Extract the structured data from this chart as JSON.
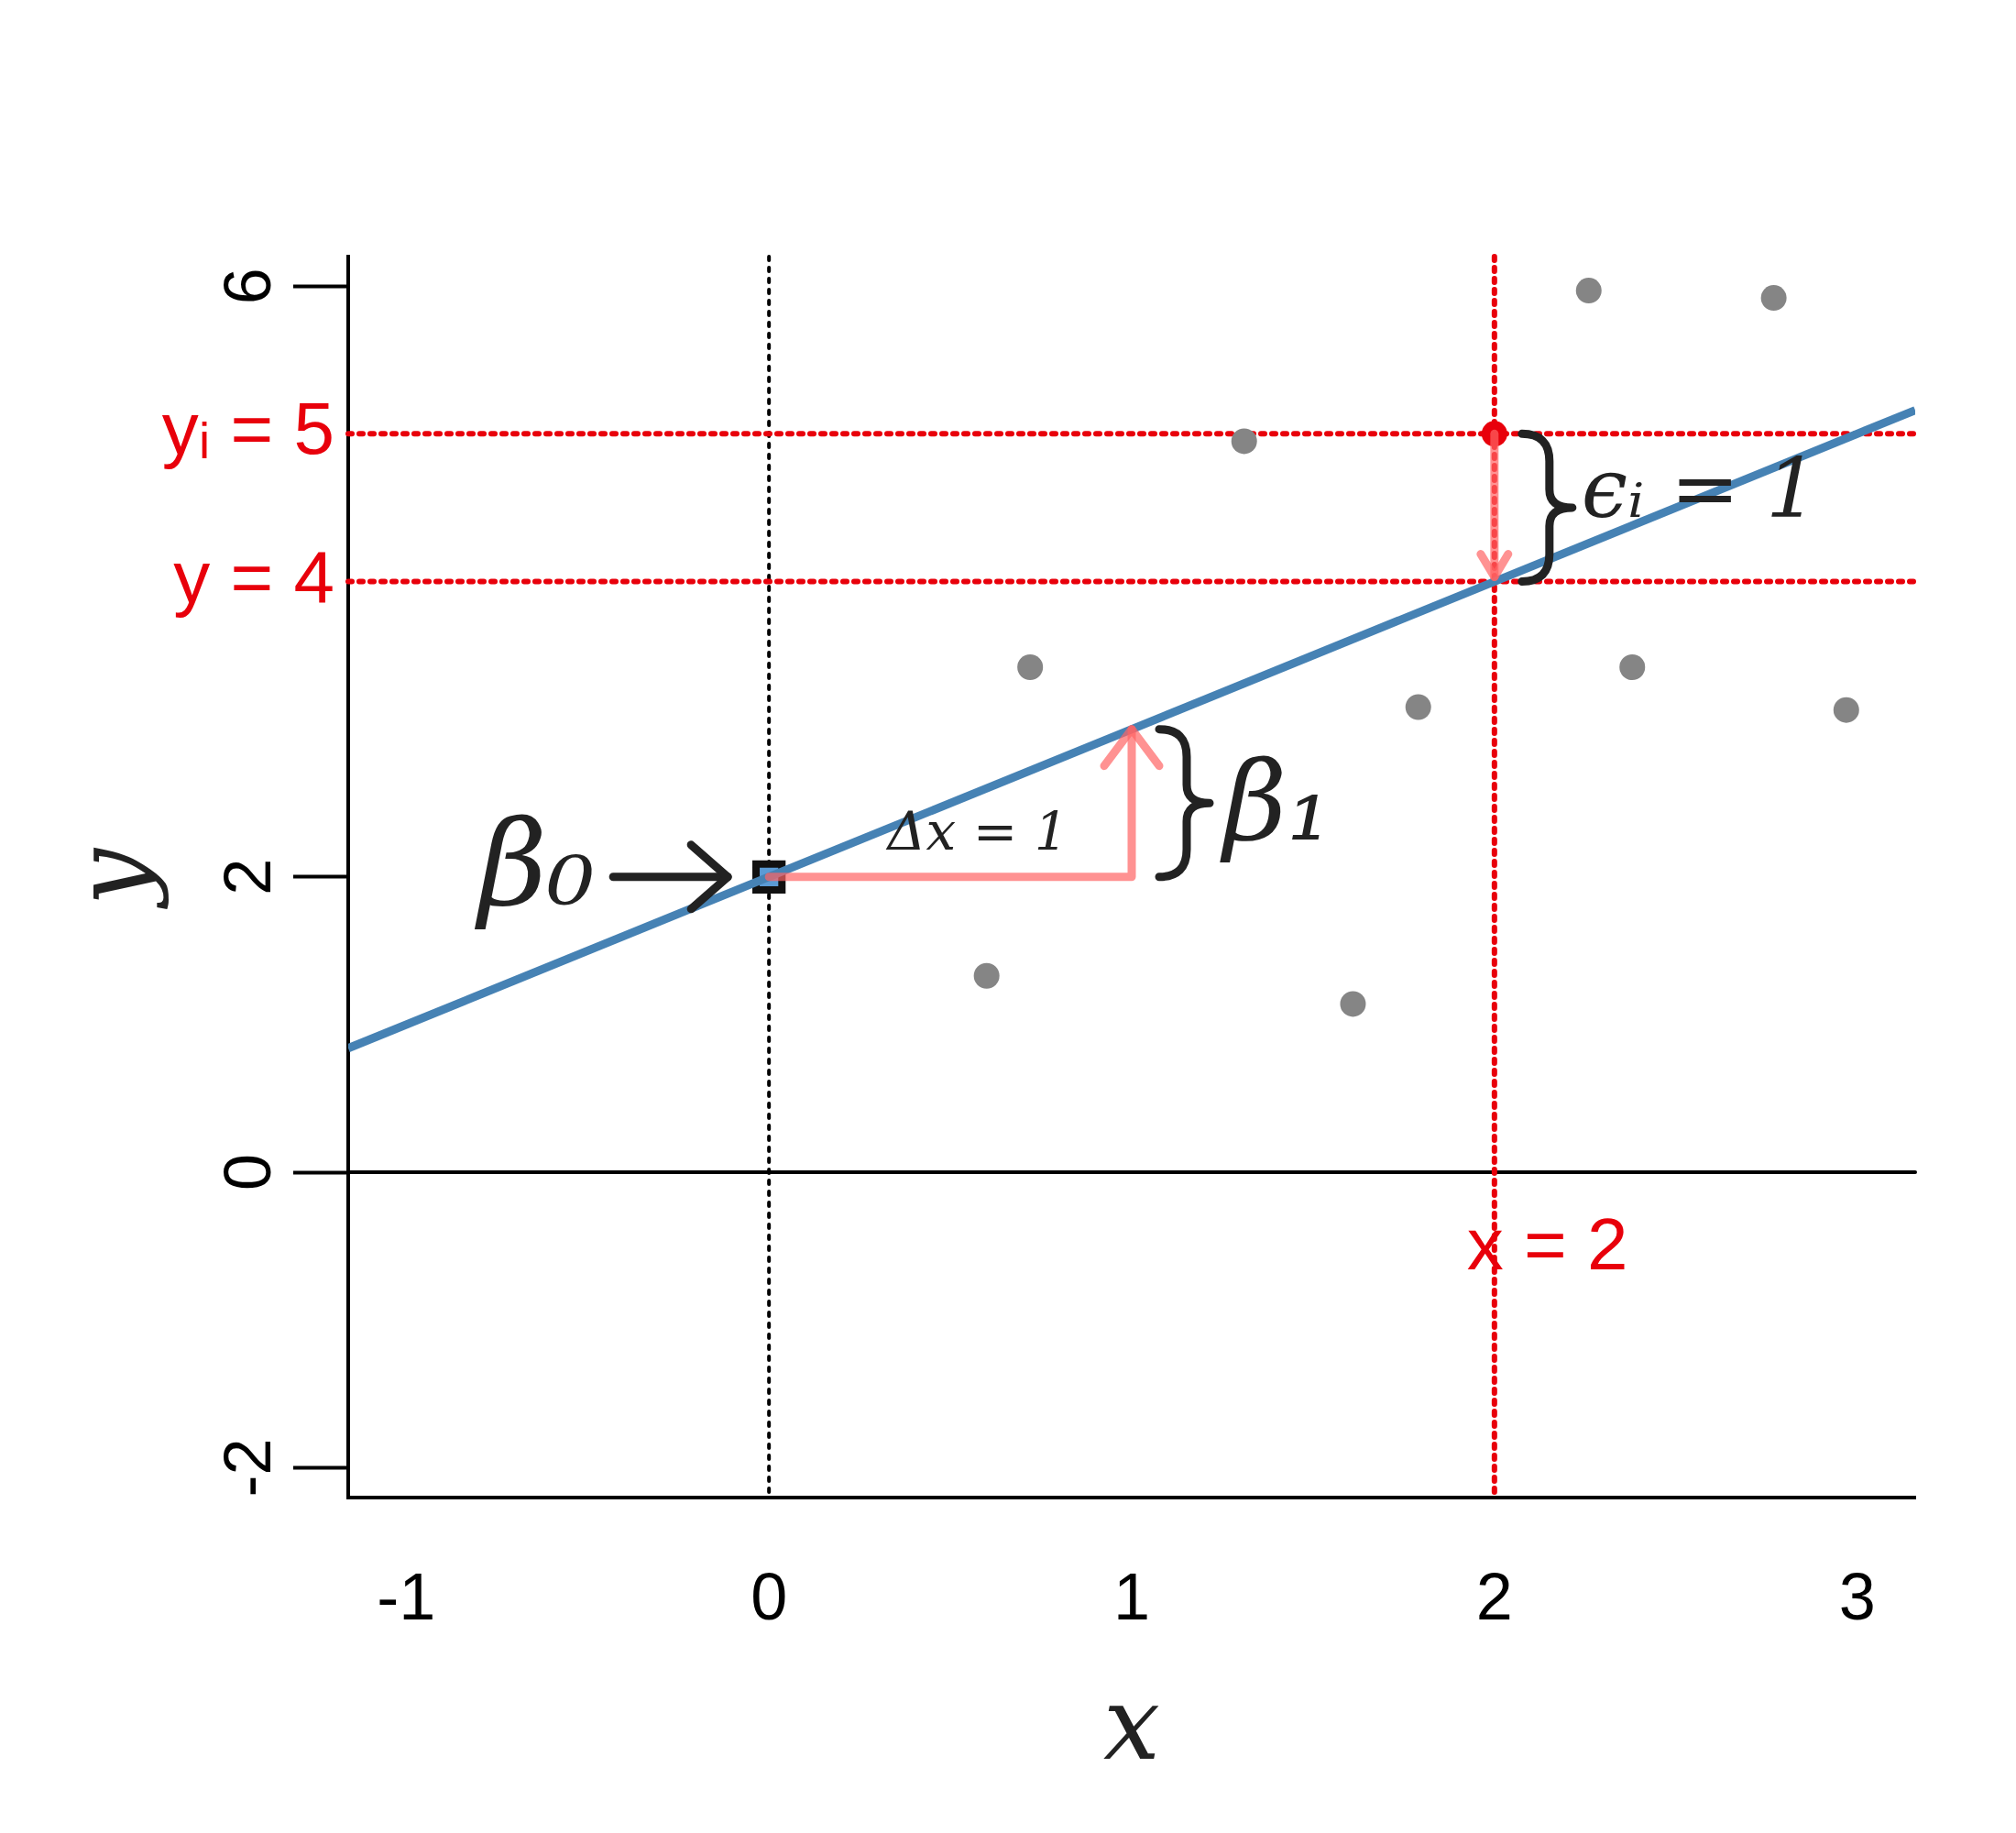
{
  "chart_data": {
    "type": "scatter",
    "xlabel": "x",
    "ylabel": "y",
    "xlim": [
      -1.16,
      3.16
    ],
    "ylim": [
      -2.2,
      6.2
    ],
    "xticks": [
      -1,
      0,
      1,
      2,
      3
    ],
    "yticks": [
      -2,
      0,
      2,
      6
    ],
    "grid": false,
    "legend": false,
    "series": [
      {
        "color": "#858585",
        "marker": "circle",
        "x": [
          2.26,
          2.77,
          1.31,
          0.72,
          2.38,
          1.79,
          2.97,
          0.6,
          1.61
        ],
        "values": [
          5.97,
          5.92,
          4.95,
          3.42,
          3.42,
          3.15,
          3.13,
          1.33,
          1.14
        ]
      },
      {
        "type": "line",
        "color": "#4682b4",
        "marker": "none",
        "x": [
          -1.16,
          3.16
        ],
        "values": [
          0.84,
          5.16
        ]
      },
      {
        "color": "#e8000b",
        "marker": "circle",
        "x": [
          2
        ],
        "values": [
          5
        ]
      },
      {
        "color": "#5b9bd5",
        "marker": "square",
        "x": [
          0
        ],
        "values": [
          2
        ]
      }
    ],
    "ref_lines": [
      {
        "axis": "x",
        "value": 0,
        "label": null,
        "color": "#000000",
        "line_style": "dotted"
      },
      {
        "axis": "y",
        "value": 0,
        "label": null,
        "color": "#000000",
        "line_style": "solid"
      },
      {
        "axis": "y",
        "value": 5,
        "label": "yᵢ = 5",
        "color": "#e8000b",
        "line_style": "dotted"
      },
      {
        "axis": "y",
        "value": 4,
        "label": "y = 4",
        "color": "#e8000b",
        "line_style": "dotted"
      },
      {
        "axis": "x",
        "value": 2,
        "label": "x = 2",
        "color": "#e8000b",
        "line_style": "dotted"
      }
    ],
    "annotations": [
      "β₀",
      "Δx = 1",
      "β₁",
      "ϵᵢ = 1"
    ]
  }
}
